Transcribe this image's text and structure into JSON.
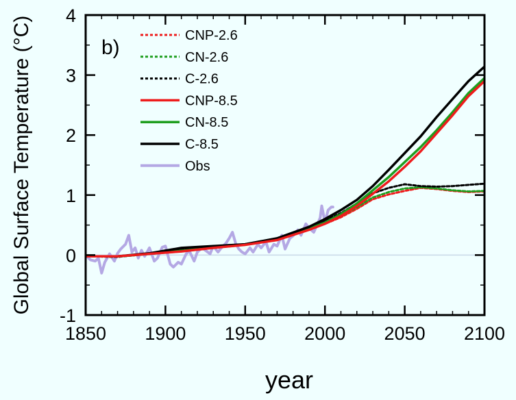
{
  "chart_data": {
    "type": "line",
    "panel_label": "b)",
    "title": "",
    "xlabel": "year",
    "ylabel": "Global Surface Temperature (°C)",
    "xlim": [
      1850,
      2100
    ],
    "ylim": [
      -1,
      4
    ],
    "x_ticks": [
      1850,
      1900,
      1950,
      2000,
      2050,
      2100
    ],
    "y_ticks": [
      -1,
      0,
      1,
      2,
      3,
      4
    ],
    "reference_line_y": 0,
    "legend_position": "top-left",
    "series": [
      {
        "name": "CNP-2.6",
        "color": "#EE1C1C",
        "style": "dotted",
        "x": [
          1850,
          1870,
          1890,
          1910,
          1930,
          1950,
          1970,
          1990,
          2000,
          2010,
          2020,
          2030,
          2040,
          2050,
          2060,
          2070,
          2080,
          2090,
          2100
        ],
        "y": [
          -0.02,
          -0.03,
          0.02,
          0.06,
          0.12,
          0.17,
          0.25,
          0.42,
          0.52,
          0.63,
          0.77,
          0.93,
          1.01,
          1.07,
          1.12,
          1.1,
          1.07,
          1.05,
          1.06
        ]
      },
      {
        "name": "CN-2.6",
        "color": "#1E9E1E",
        "style": "dotted",
        "x": [
          1850,
          1870,
          1890,
          1910,
          1930,
          1950,
          1970,
          1990,
          2000,
          2010,
          2020,
          2030,
          2040,
          2050,
          2060,
          2070,
          2080,
          2090,
          2100
        ],
        "y": [
          -0.02,
          -0.03,
          0.02,
          0.07,
          0.12,
          0.18,
          0.26,
          0.44,
          0.54,
          0.65,
          0.8,
          0.96,
          1.05,
          1.11,
          1.13,
          1.11,
          1.08,
          1.06,
          1.07
        ]
      },
      {
        "name": "C-2.6",
        "color": "#000000",
        "style": "dotted",
        "x": [
          1850,
          1870,
          1890,
          1910,
          1930,
          1950,
          1970,
          1990,
          2000,
          2010,
          2020,
          2030,
          2040,
          2050,
          2060,
          2070,
          2080,
          2090,
          2100
        ],
        "y": [
          -0.02,
          -0.03,
          0.03,
          0.09,
          0.13,
          0.18,
          0.28,
          0.46,
          0.57,
          0.7,
          0.86,
          1.03,
          1.12,
          1.18,
          1.15,
          1.14,
          1.15,
          1.17,
          1.19
        ]
      },
      {
        "name": "CNP-8.5",
        "color": "#EE1C1C",
        "style": "solid",
        "x": [
          1850,
          1870,
          1890,
          1910,
          1930,
          1950,
          1970,
          1990,
          2000,
          2010,
          2020,
          2030,
          2040,
          2050,
          2060,
          2070,
          2080,
          2090,
          2100
        ],
        "y": [
          -0.02,
          -0.02,
          0.02,
          0.06,
          0.12,
          0.17,
          0.25,
          0.42,
          0.52,
          0.65,
          0.82,
          1.02,
          1.23,
          1.47,
          1.73,
          2.03,
          2.33,
          2.65,
          2.9
        ]
      },
      {
        "name": "CN-8.5",
        "color": "#1E9E1E",
        "style": "solid",
        "x": [
          1850,
          1870,
          1890,
          1910,
          1930,
          1950,
          1970,
          1990,
          2000,
          2010,
          2020,
          2030,
          2040,
          2050,
          2060,
          2070,
          2080,
          2090,
          2100
        ],
        "y": [
          -0.02,
          -0.02,
          0.02,
          0.07,
          0.12,
          0.18,
          0.26,
          0.44,
          0.54,
          0.68,
          0.86,
          1.08,
          1.3,
          1.55,
          1.8,
          2.08,
          2.38,
          2.7,
          2.95
        ]
      },
      {
        "name": "C-8.5",
        "color": "#000000",
        "style": "solid",
        "x": [
          1850,
          1870,
          1890,
          1910,
          1930,
          1950,
          1970,
          1990,
          2000,
          2010,
          2020,
          2030,
          2040,
          2050,
          2060,
          2070,
          2080,
          2090,
          2100
        ],
        "y": [
          -0.02,
          -0.02,
          0.03,
          0.12,
          0.15,
          0.18,
          0.28,
          0.47,
          0.6,
          0.75,
          0.92,
          1.15,
          1.42,
          1.7,
          1.98,
          2.3,
          2.6,
          2.9,
          3.14
        ]
      },
      {
        "name": "Obs",
        "color": "#B4A8E4",
        "style": "solid",
        "x": [
          1850,
          1853,
          1856,
          1858,
          1860,
          1862,
          1865,
          1868,
          1870,
          1872,
          1875,
          1877,
          1879,
          1881,
          1883,
          1885,
          1887,
          1890,
          1893,
          1895,
          1898,
          1900,
          1903,
          1905,
          1908,
          1910,
          1913,
          1915,
          1918,
          1920,
          1923,
          1925,
          1928,
          1930,
          1933,
          1935,
          1938,
          1940,
          1942,
          1944,
          1946,
          1948,
          1950,
          1953,
          1955,
          1958,
          1960,
          1963,
          1965,
          1968,
          1970,
          1973,
          1975,
          1978,
          1980,
          1983,
          1985,
          1988,
          1990,
          1993,
          1995,
          1997,
          1998,
          2000,
          2002,
          2004,
          2005
        ],
        "y": [
          0.0,
          -0.08,
          -0.1,
          -0.05,
          -0.3,
          -0.12,
          0.02,
          -0.1,
          0.03,
          0.1,
          0.18,
          0.33,
          0.05,
          0.12,
          -0.05,
          0.08,
          -0.02,
          0.12,
          -0.1,
          -0.05,
          0.13,
          0.15,
          -0.15,
          -0.2,
          -0.12,
          -0.15,
          0.02,
          0.07,
          -0.1,
          0.05,
          0.12,
          0.08,
          0.02,
          0.15,
          0.05,
          0.12,
          0.2,
          0.28,
          0.38,
          0.2,
          0.1,
          0.05,
          0.02,
          0.12,
          0.05,
          0.18,
          0.12,
          0.22,
          0.05,
          0.18,
          0.15,
          0.33,
          0.1,
          0.28,
          0.32,
          0.42,
          0.33,
          0.52,
          0.45,
          0.38,
          0.5,
          0.62,
          0.82,
          0.55,
          0.75,
          0.8,
          0.8
        ]
      }
    ]
  }
}
